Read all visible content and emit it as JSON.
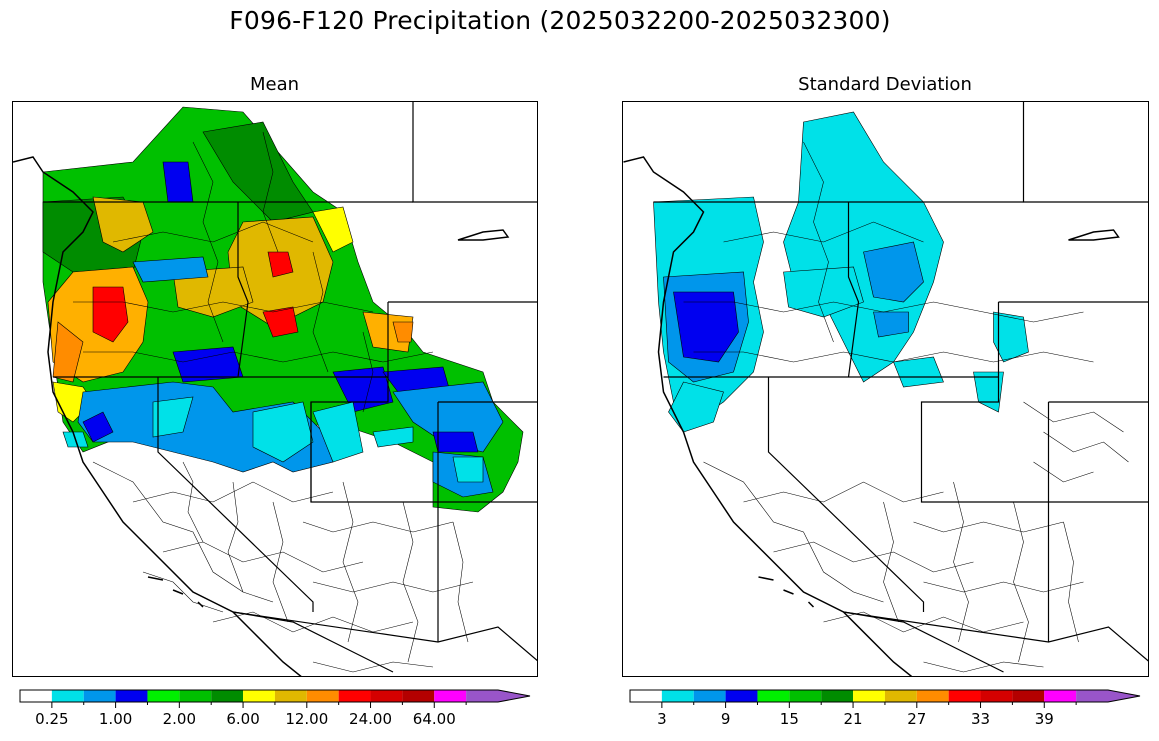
{
  "figure": {
    "title": "F096-F120 Precipitation (2025032200-2025032300)"
  },
  "panels": [
    {
      "title": "Mean",
      "colorbar": {
        "colors": [
          "#ffffff",
          "#00e1e8",
          "#0096eb",
          "#0000f0",
          "#00f000",
          "#00c000",
          "#008c00",
          "#ffff00",
          "#e0b800",
          "#ff8c00",
          "#ff0000",
          "#d50000",
          "#b40000",
          "#ff00ff",
          "#9955c9"
        ],
        "tick_labels": [
          "0.25",
          "1.00",
          "2.00",
          "6.00",
          "12.00",
          "24.00",
          "64.00"
        ]
      }
    },
    {
      "title": "Standard Deviation",
      "colorbar": {
        "colors": [
          "#ffffff",
          "#00e1e8",
          "#0096eb",
          "#0000f0",
          "#00f000",
          "#00c000",
          "#008c00",
          "#ffff00",
          "#e0b800",
          "#ff8c00",
          "#ff0000",
          "#d50000",
          "#b40000",
          "#ff00ff",
          "#9955c9"
        ],
        "tick_labels": [
          "3",
          "9",
          "15",
          "21",
          "27",
          "33",
          "39"
        ]
      }
    }
  ]
}
